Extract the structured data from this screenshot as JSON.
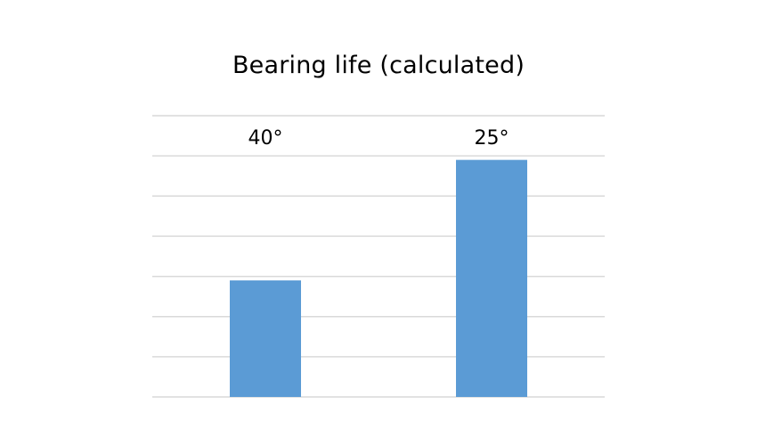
{
  "chart_data": {
    "type": "bar",
    "title": "Bearing life (calculated)",
    "categories": [
      "40°",
      "25°"
    ],
    "values": [
      2.9,
      5.9
    ],
    "ylim": [
      0,
      7
    ],
    "grid": true,
    "legend": "none",
    "colors": {
      "bar": "#5b9bd5",
      "grid": "#d9d9d9"
    }
  }
}
